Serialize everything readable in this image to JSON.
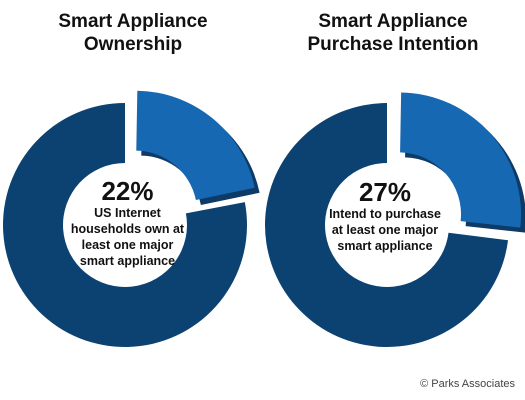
{
  "chart_data": [
    {
      "type": "pie",
      "title": [
        "Smart Appliance",
        "Ownership"
      ],
      "center_value": "22%",
      "center_text": [
        "US Internet",
        "households own at",
        "least one major",
        "smart appliance"
      ],
      "slices": [
        {
          "label": "own at least one major smart appliance",
          "value": 22,
          "exploded": true
        },
        {
          "label": "",
          "value": 78,
          "exploded": false
        }
      ]
    },
    {
      "type": "pie",
      "title": [
        "Smart Appliance",
        "Purchase Intention"
      ],
      "center_value": "27%",
      "center_text": [
        "Intend to purchase",
        "at least one major",
        "smart appliance"
      ],
      "slices": [
        {
          "label": "intend to purchase at least one major smart appliance",
          "value": 27,
          "exploded": true
        },
        {
          "label": "",
          "value": 73,
          "exploded": false
        }
      ]
    }
  ],
  "colors": {
    "main": "#0c4271",
    "accent": "#1768b2",
    "accent_side": "#0d3a66"
  },
  "credit": "© Parks Associates"
}
